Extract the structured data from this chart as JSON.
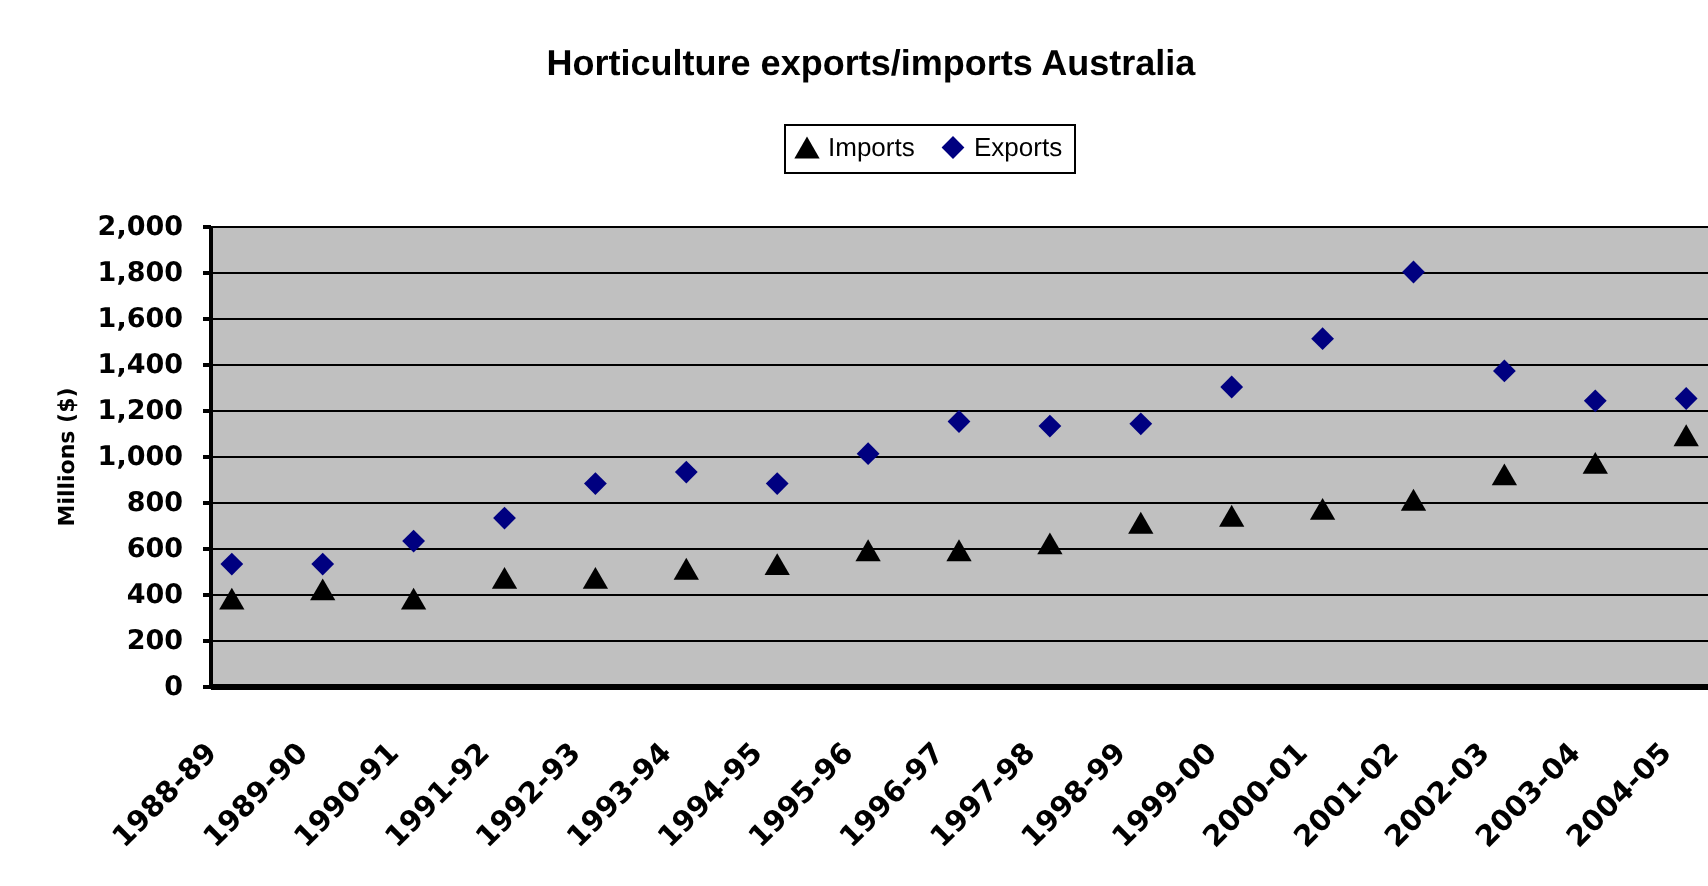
{
  "chart_data": {
    "type": "scatter",
    "title": "Horticulture exports/imports Australia",
    "ylabel": "Millions ($)",
    "categories": [
      "1988-89",
      "1989-90",
      "1990-91",
      "1991-92",
      "1992-93",
      "1993-94",
      "1994-95",
      "1995-96",
      "1996-97",
      "1997-98",
      "1998-99",
      "1999-00",
      "2000-01",
      "2001-02",
      "2002-03",
      "2003-04",
      "2004-05"
    ],
    "series": [
      {
        "name": "Imports",
        "color": "#000000",
        "marker": "triangle",
        "values": [
          380,
          420,
          380,
          470,
          470,
          510,
          530,
          590,
          590,
          620,
          710,
          740,
          770,
          810,
          920,
          970,
          1090
        ]
      },
      {
        "name": "Exports",
        "color": "#000080",
        "marker": "diamond",
        "values": [
          530,
          530,
          630,
          730,
          880,
          930,
          880,
          1010,
          1150,
          1130,
          1140,
          1300,
          1510,
          1800,
          1370,
          1240,
          1250
        ]
      }
    ],
    "ylim": [
      0,
      2000
    ],
    "yticks": [
      0,
      200,
      400,
      600,
      800,
      {
        "value": 1000,
        "label": "1,000"
      },
      {
        "value": 1200,
        "label": "1,200"
      },
      {
        "value": 1400,
        "label": "1,400"
      },
      {
        "value": 1600,
        "label": "1,600"
      },
      {
        "value": 1800,
        "label": "1,800"
      },
      {
        "value": 2000,
        "label": "2,000"
      }
    ],
    "grid": "y",
    "legend": "top"
  }
}
